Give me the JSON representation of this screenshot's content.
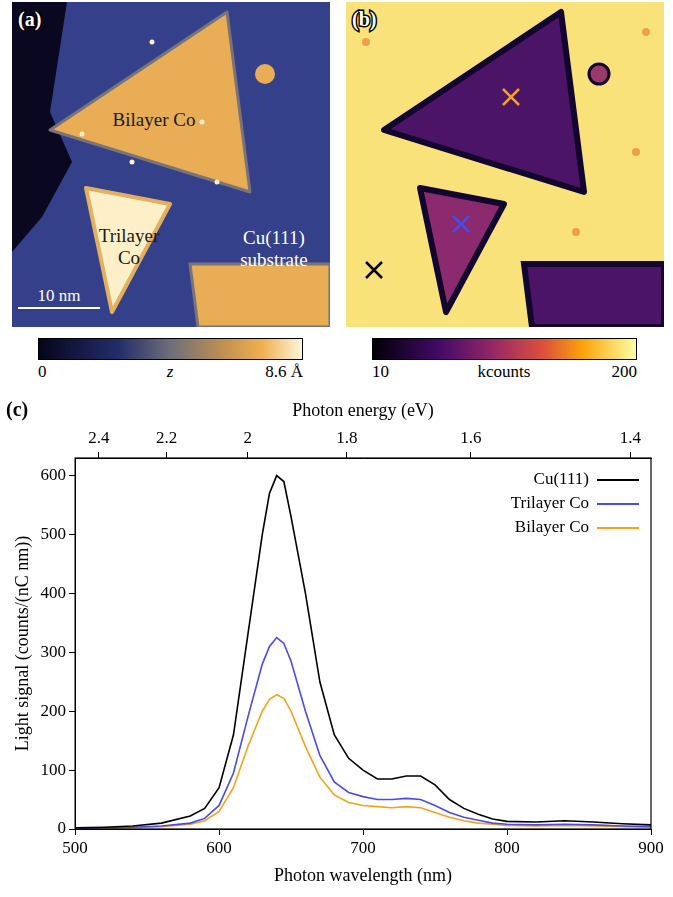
{
  "panels": [
    {
      "letter": "(a)",
      "labels": [
        [
          "Bilayer Co"
        ],
        [
          "Trilayer",
          "Co"
        ],
        [
          "Cu(111)",
          "substrate"
        ]
      ],
      "scale_bar": "10 nm",
      "colorbar": {
        "range": [
          0,
          8.6
        ],
        "ticks": [
          0,
          {
            "value": 8.6,
            "label": "8.6 Å"
          }
        ],
        "label": "z"
      }
    },
    {
      "letter": "(b)",
      "colorbar": {
        "range": [
          10,
          200
        ],
        "ticks": [
          10,
          200
        ],
        "label": "kcounts"
      }
    },
    {
      "letter": "(c)"
    }
  ],
  "chart_data": {
    "type": "line",
    "x_label": "Photon wavelength (nm)",
    "x2_label": "Photon energy (eV)",
    "y_label": "Light signal (counts/(nC nm))",
    "x": [
      500,
      520,
      540,
      560,
      580,
      590,
      600,
      610,
      620,
      630,
      635,
      640,
      645,
      650,
      660,
      670,
      680,
      690,
      700,
      710,
      720,
      730,
      740,
      750,
      760,
      770,
      780,
      790,
      800,
      820,
      840,
      860,
      880,
      900
    ],
    "series": [
      {
        "name": "Cu(111)",
        "color": "#000000",
        "values": [
          2,
          3,
          5,
          10,
          22,
          35,
          70,
          160,
          330,
          500,
          570,
          600,
          590,
          530,
          400,
          250,
          160,
          120,
          100,
          85,
          85,
          90,
          90,
          75,
          50,
          35,
          25,
          17,
          13,
          12,
          14,
          12,
          9,
          7
        ]
      },
      {
        "name": "Trilayer Co",
        "color": "#4b4bea",
        "values": [
          1,
          2,
          3,
          5,
          10,
          18,
          40,
          95,
          190,
          280,
          310,
          325,
          315,
          285,
          200,
          125,
          80,
          62,
          55,
          50,
          50,
          52,
          50,
          40,
          28,
          20,
          15,
          10,
          8,
          7,
          8,
          7,
          5,
          4
        ]
      },
      {
        "name": "Bilayer Co",
        "color": "#f5a31a",
        "values": [
          1,
          1,
          2,
          4,
          8,
          14,
          30,
          70,
          140,
          200,
          220,
          228,
          222,
          200,
          140,
          88,
          58,
          45,
          40,
          38,
          36,
          38,
          36,
          28,
          20,
          14,
          10,
          8,
          6,
          5,
          6,
          5,
          4,
          3
        ]
      }
    ],
    "xlim": [
      500,
      900
    ],
    "xticks": [
      500,
      600,
      700,
      800,
      900
    ],
    "x2ticks": [
      {
        "value": 516.6,
        "label": "2.4"
      },
      {
        "value": 563.6,
        "label": "2.2"
      },
      {
        "value": 619.9,
        "label": "2"
      },
      {
        "value": 688.8,
        "label": "1.8"
      },
      {
        "value": 774.9,
        "label": "1.6"
      },
      {
        "value": 885.6,
        "label": "1.4"
      }
    ],
    "ylim": [
      0,
      630
    ],
    "yticks": [
      0,
      100,
      200,
      300,
      400,
      500,
      600
    ],
    "grid": false,
    "legend": "upper right"
  }
}
